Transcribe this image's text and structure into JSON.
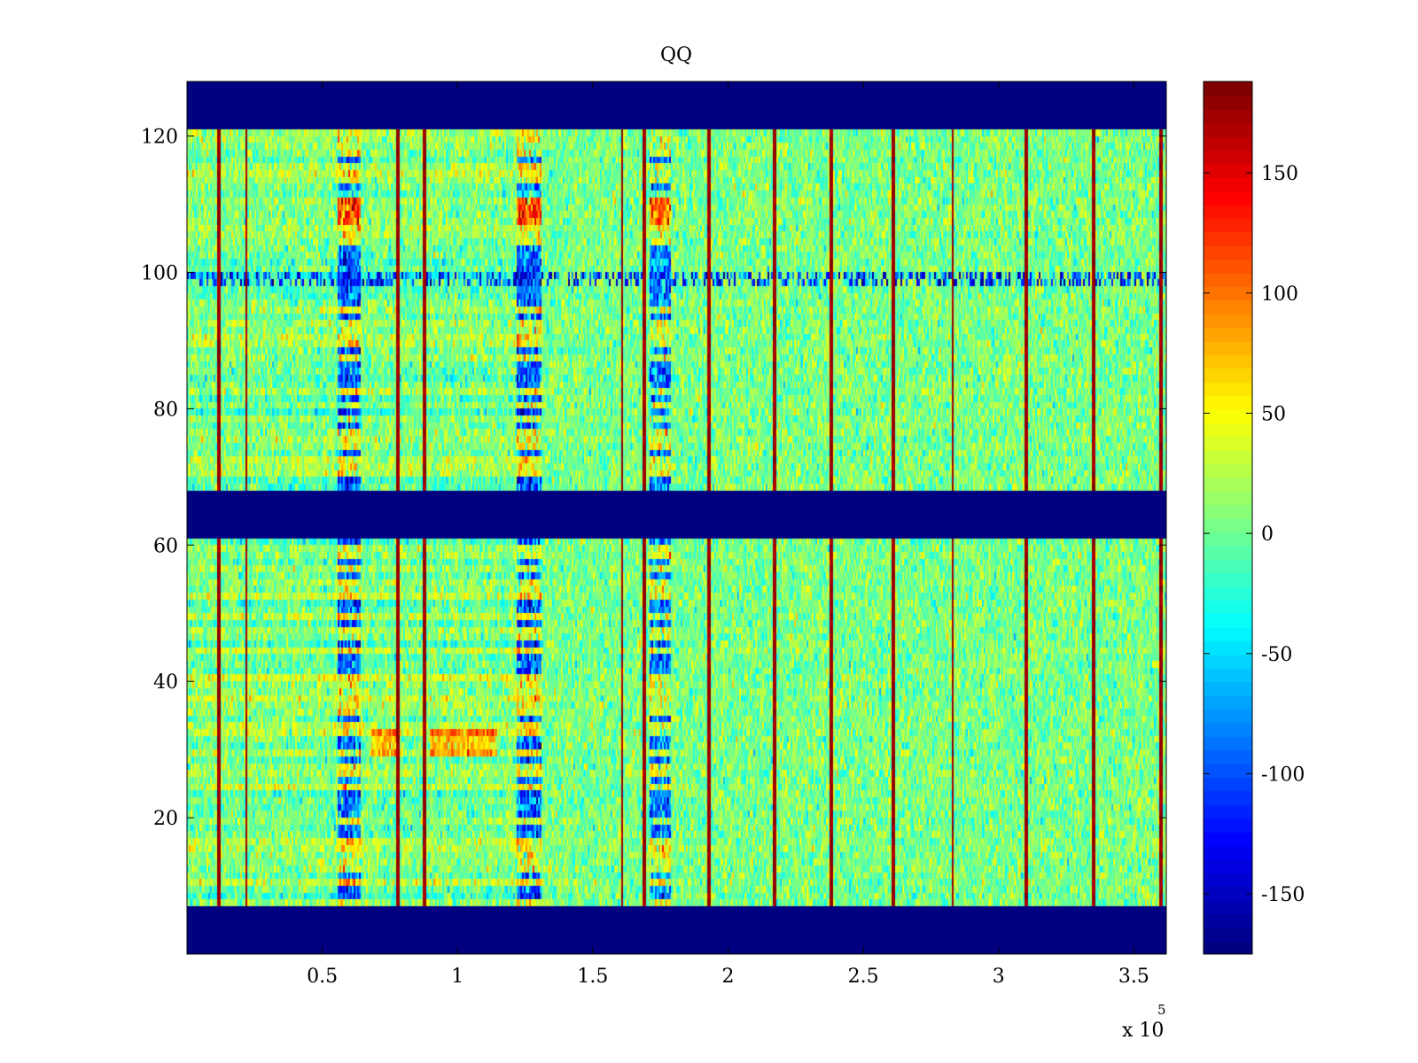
{
  "chart_data": {
    "type": "heatmap",
    "title": "QQ",
    "xlabel": "",
    "ylabel": "",
    "x_multiplier_label": {
      "base": "x 10",
      "exponent": "5"
    },
    "xlim": [
      0,
      3.62
    ],
    "ylim": [
      0,
      128
    ],
    "xticks": [
      0.5,
      1,
      1.5,
      2,
      2.5,
      3,
      3.5
    ],
    "xtick_labels": [
      "0.5",
      "1",
      "1.5",
      "2",
      "2.5",
      "3",
      "3.5"
    ],
    "yticks": [
      20,
      40,
      60,
      80,
      100,
      120
    ],
    "ytick_labels": [
      "20",
      "40",
      "60",
      "80",
      "100",
      "120"
    ],
    "colormap": "jet",
    "clim": [
      -175,
      188
    ],
    "colorbar": {
      "ticks": [
        -150,
        -100,
        -50,
        0,
        50,
        100,
        150
      ],
      "tick_labels": [
        "-150",
        "-100",
        "-50",
        "0",
        "50",
        "100",
        "150"
      ]
    },
    "empty_row_bands": [
      [
        0,
        7
      ],
      [
        61,
        68
      ],
      [
        121,
        128
      ]
    ],
    "vertical_spike_columns": [
      0.12,
      0.22,
      0.78,
      0.88,
      1.61,
      1.69,
      1.93,
      2.17,
      2.38,
      2.61,
      2.83,
      3.1,
      3.35,
      3.6
    ],
    "low_value_column_bands": [
      [
        0.56,
        0.64
      ],
      [
        1.22,
        1.31
      ],
      [
        1.71,
        1.79
      ]
    ],
    "high_value_row_blocks": [
      {
        "x": [
          0.56,
          0.64
        ],
        "y": [
          107,
          112
        ]
      },
      {
        "x": [
          1.22,
          1.31
        ],
        "y": [
          107,
          112
        ]
      },
      {
        "x": [
          1.71,
          1.79
        ],
        "y": [
          107,
          112
        ]
      },
      {
        "x": [
          0.68,
          0.78
        ],
        "y": [
          29,
          33
        ]
      },
      {
        "x": [
          0.9,
          1.15
        ],
        "y": [
          29,
          33
        ]
      }
    ],
    "noisy_row": 99,
    "background_value_mean": 5
  }
}
